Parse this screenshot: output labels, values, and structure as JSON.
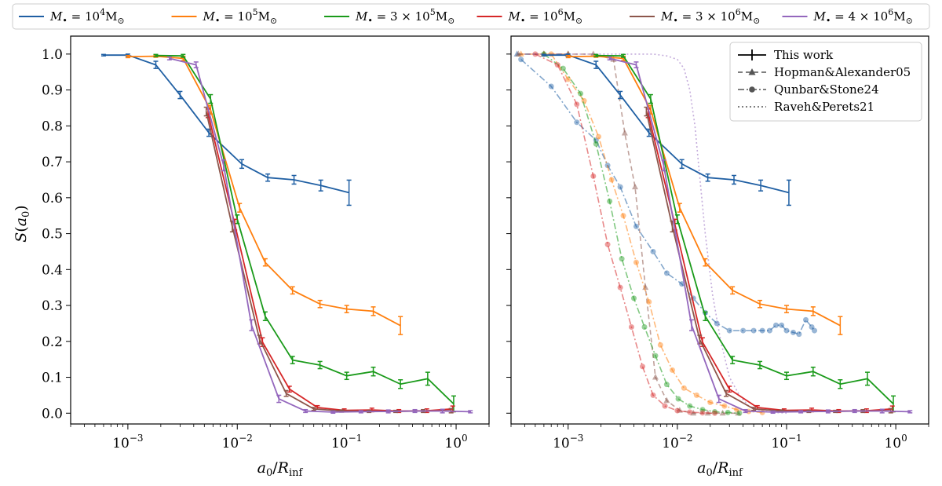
{
  "chart_data": {
    "type": "line",
    "xscale": "log",
    "xlabel": "a_0/R_inf",
    "ylabel": "S(a_0)",
    "xlim": [
      0.0003,
      2.0
    ],
    "ylim": [
      -0.03,
      1.05
    ],
    "xticks": [
      {
        "value": 0.001,
        "base": "10",
        "exp": "−3"
      },
      {
        "value": 0.01,
        "base": "10",
        "exp": "−2"
      },
      {
        "value": 0.1,
        "base": "10",
        "exp": "−1"
      },
      {
        "value": 1,
        "base": "10",
        "exp": "0"
      }
    ],
    "yticks": [
      {
        "value": 0.0,
        "label": "0.0"
      },
      {
        "value": 0.1,
        "label": "0.1"
      },
      {
        "value": 0.2,
        "label": "0.2"
      },
      {
        "value": 0.3,
        "label": "0.3"
      },
      {
        "value": 0.4,
        "label": "0.4"
      },
      {
        "value": 0.5,
        "label": "0.5"
      },
      {
        "value": 0.6,
        "label": "0.6"
      },
      {
        "value": 0.7,
        "label": "0.7"
      },
      {
        "value": 0.8,
        "label": "0.8"
      },
      {
        "value": 0.9,
        "label": "0.9"
      },
      {
        "value": 1.0,
        "label": "1.0"
      }
    ],
    "mass_legend": [
      {
        "prefix": "",
        "base": "10",
        "exp": "4",
        "color": "#1f5fa3"
      },
      {
        "prefix": "",
        "base": "10",
        "exp": "5",
        "color": "#ff7f0e"
      },
      {
        "prefix": "3 × ",
        "base": "10",
        "exp": "5",
        "color": "#1a9a1a"
      },
      {
        "prefix": "",
        "base": "10",
        "exp": "6",
        "color": "#d62728"
      },
      {
        "prefix": "3 × ",
        "base": "10",
        "exp": "6",
        "color": "#8c564b"
      },
      {
        "prefix": "4 × ",
        "base": "10",
        "exp": "6",
        "color": "#9467bd"
      }
    ],
    "method_legend": [
      {
        "label": "This work",
        "style": "solid"
      },
      {
        "label": "Hopman&Alexander05",
        "style": "dashed"
      },
      {
        "label": "Qunbar&Stone24",
        "style": "dashdot"
      },
      {
        "label": "Raveh&Perets21",
        "style": "dotted"
      }
    ],
    "series": [
      {
        "name": "1e4",
        "color": "#1f5fa3",
        "x": [
          0.0006,
          0.001,
          0.0018,
          0.003,
          0.0055,
          0.011,
          0.019,
          0.033,
          0.058,
          0.105
        ],
        "y": [
          0.997,
          0.997,
          0.97,
          0.886,
          0.781,
          0.694,
          0.656,
          0.65,
          0.634,
          0.614
        ],
        "err": [
          0.002,
          0.003,
          0.01,
          0.01,
          0.01,
          0.012,
          0.01,
          0.012,
          0.015,
          0.035
        ]
      },
      {
        "name": "1e5",
        "color": "#ff7f0e",
        "x": [
          0.001,
          0.0018,
          0.0032,
          0.0057,
          0.0105,
          0.018,
          0.032,
          0.057,
          0.1,
          0.175,
          0.31
        ],
        "y": [
          0.993,
          0.994,
          0.988,
          0.845,
          0.572,
          0.42,
          0.342,
          0.304,
          0.29,
          0.284,
          0.244
        ],
        "err": [
          0.003,
          0.003,
          0.006,
          0.012,
          0.012,
          0.01,
          0.01,
          0.01,
          0.01,
          0.012,
          0.025
        ]
      },
      {
        "name": "3e5",
        "color": "#1a9a1a",
        "x": [
          0.0018,
          0.0032,
          0.0057,
          0.01,
          0.018,
          0.032,
          0.057,
          0.1,
          0.175,
          0.31,
          0.55,
          0.95
        ],
        "y": [
          0.996,
          0.995,
          0.875,
          0.54,
          0.27,
          0.148,
          0.134,
          0.104,
          0.116,
          0.081,
          0.096,
          0.026
        ],
        "err": [
          0.003,
          0.004,
          0.012,
          0.012,
          0.012,
          0.01,
          0.01,
          0.01,
          0.012,
          0.012,
          0.018,
          0.022
        ]
      },
      {
        "name": "1e6",
        "color": "#d62728",
        "x": [
          0.0054,
          0.0095,
          0.017,
          0.03,
          0.054,
          0.095,
          0.17,
          0.3,
          0.54,
          0.93
        ],
        "y": [
          0.835,
          0.525,
          0.198,
          0.067,
          0.016,
          0.008,
          0.009,
          0.006,
          0.007,
          0.012
        ],
        "err": [
          0.012,
          0.015,
          0.012,
          0.008,
          0.005,
          0.004,
          0.005,
          0.004,
          0.005,
          0.008
        ]
      },
      {
        "name": "3e6",
        "color": "#8c564b",
        "x": [
          0.0052,
          0.009,
          0.016,
          0.028,
          0.05,
          0.09,
          0.16,
          0.28,
          0.5,
          0.9
        ],
        "y": [
          0.84,
          0.52,
          0.205,
          0.055,
          0.012,
          0.006,
          0.005,
          0.005,
          0.006,
          0.007
        ],
        "err": [
          0.012,
          0.015,
          0.012,
          0.008,
          0.004,
          0.003,
          0.003,
          0.003,
          0.004,
          0.006
        ]
      },
      {
        "name": "4e6",
        "color": "#9467bd",
        "x": [
          0.0024,
          0.0042,
          0.0075,
          0.0135,
          0.024,
          0.042,
          0.075,
          0.135,
          0.24,
          0.42,
          0.75,
          1.35
        ],
        "y": [
          0.988,
          0.97,
          0.69,
          0.245,
          0.04,
          0.006,
          0.003,
          0.004,
          0.005,
          0.006,
          0.006,
          0.004
        ],
        "err": [
          0.004,
          0.008,
          0.015,
          0.015,
          0.01,
          0.004,
          0.003,
          0.003,
          0.004,
          0.004,
          0.005,
          0.003
        ]
      }
    ],
    "comparison_series": [
      {
        "name": "H&A 1e4",
        "method": "Hopman&Alexander05",
        "color": "#1f5fa3",
        "marker": "triangle",
        "x": [
          0.00034,
          0.0006,
          0.001
        ],
        "y": [
          1.0,
          1.0,
          1.0
        ]
      },
      {
        "name": "H&A 1e5",
        "method": "Hopman&Alexander05",
        "color": "#ff7f0e",
        "marker": "triangle",
        "x": [
          0.00037,
          0.0006,
          0.001
        ],
        "y": [
          1.0,
          1.0,
          1.0
        ]
      },
      {
        "name": "H&A 3e6",
        "method": "Hopman&Alexander05",
        "color": "#8c564b",
        "marker": "triangle",
        "x": [
          0.00035,
          0.0006,
          0.001,
          0.0017,
          0.0026,
          0.0033,
          0.0041,
          0.0051,
          0.0063,
          0.008,
          0.0105,
          0.014,
          0.019,
          0.026,
          0.036
        ],
        "y": [
          1.0,
          1.0,
          1.0,
          1.0,
          0.985,
          0.78,
          0.63,
          0.35,
          0.1,
          0.035,
          0.008,
          0.0,
          0.0,
          0.0,
          0.0
        ]
      },
      {
        "name": "Q&S 1e4",
        "method": "Qunbar&Stone24",
        "color": "#1f5fa3",
        "marker": "circle",
        "x": [
          0.00037,
          0.0007,
          0.0012,
          0.0018,
          0.0023,
          0.003,
          0.0042,
          0.006,
          0.008,
          0.011,
          0.014,
          0.018,
          0.023,
          0.03,
          0.04,
          0.05,
          0.06,
          0.07,
          0.08,
          0.09,
          0.1,
          0.115,
          0.13,
          0.15,
          0.17,
          0.18
        ],
        "y": [
          0.985,
          0.91,
          0.81,
          0.76,
          0.69,
          0.63,
          0.52,
          0.45,
          0.39,
          0.36,
          0.32,
          0.28,
          0.25,
          0.23,
          0.23,
          0.23,
          0.23,
          0.23,
          0.245,
          0.245,
          0.23,
          0.225,
          0.22,
          0.26,
          0.24,
          0.23
        ]
      },
      {
        "name": "Q&S 1e5",
        "method": "Qunbar&Stone24",
        "color": "#ff7f0e",
        "marker": "circle",
        "x": [
          0.0007,
          0.001,
          0.0014,
          0.0019,
          0.0025,
          0.0032,
          0.0042,
          0.0055,
          0.007,
          0.009,
          0.0115,
          0.015,
          0.02,
          0.027,
          0.035,
          0.045,
          0.06
        ],
        "y": [
          1.0,
          0.93,
          0.87,
          0.77,
          0.65,
          0.55,
          0.42,
          0.31,
          0.19,
          0.12,
          0.07,
          0.05,
          0.03,
          0.02,
          0.01,
          0.005,
          0.002
        ]
      },
      {
        "name": "Q&S 3e5",
        "method": "Qunbar&Stone24",
        "color": "#1a9a1a",
        "marker": "circle",
        "x": [
          0.0006,
          0.0009,
          0.0013,
          0.0018,
          0.0024,
          0.0031,
          0.004,
          0.005,
          0.0063,
          0.008,
          0.0102,
          0.013,
          0.017,
          0.022,
          0.029,
          0.037
        ],
        "y": [
          1.0,
          0.96,
          0.89,
          0.75,
          0.59,
          0.43,
          0.32,
          0.24,
          0.16,
          0.08,
          0.04,
          0.02,
          0.01,
          0.004,
          0.002,
          0.0
        ]
      },
      {
        "name": "Q&S 1e6",
        "method": "Qunbar&Stone24",
        "color": "#d62728",
        "marker": "circle",
        "x": [
          0.0005,
          0.0008,
          0.0012,
          0.0017,
          0.0023,
          0.003,
          0.0038,
          0.0048,
          0.006,
          0.0077,
          0.01,
          0.013,
          0.017,
          0.022
        ],
        "y": [
          1.0,
          0.97,
          0.86,
          0.66,
          0.47,
          0.35,
          0.24,
          0.13,
          0.05,
          0.02,
          0.007,
          0.003,
          0.001,
          0.0
        ]
      },
      {
        "name": "R&P 4e6",
        "method": "Raveh&Perets21",
        "color": "#9467bd",
        "marker": "none",
        "x": [
          0.0004,
          0.001,
          0.003,
          0.006,
          0.008,
          0.01,
          0.0115,
          0.013,
          0.0145,
          0.016,
          0.018,
          0.021,
          0.025,
          0.03,
          0.037,
          0.045,
          0.06,
          0.08,
          0.1
        ],
        "y": [
          1.0,
          1.0,
          1.0,
          1.0,
          0.995,
          0.985,
          0.96,
          0.9,
          0.8,
          0.66,
          0.5,
          0.33,
          0.2,
          0.1,
          0.05,
          0.02,
          0.006,
          0.002,
          0.0
        ]
      }
    ]
  }
}
